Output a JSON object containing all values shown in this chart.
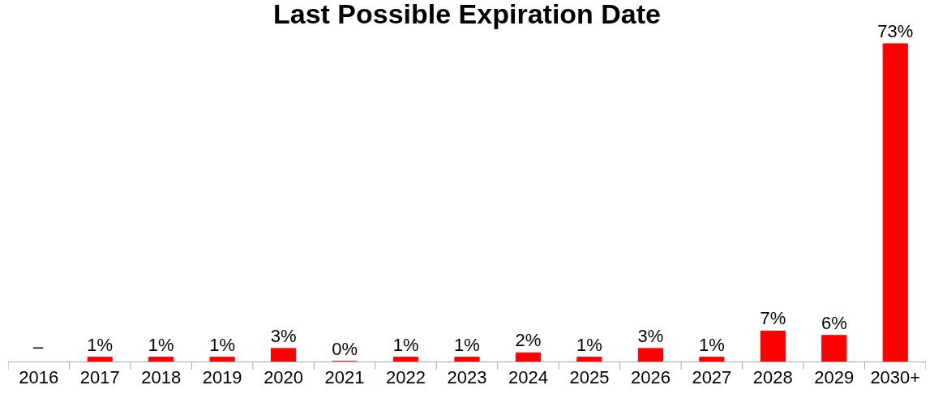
{
  "chart_data": {
    "type": "bar",
    "title": "Last Possible Expiration Date",
    "categories": [
      "2016",
      "2017",
      "2018",
      "2019",
      "2020",
      "2021",
      "2022",
      "2023",
      "2024",
      "2025",
      "2026",
      "2027",
      "2028",
      "2029",
      "2030+"
    ],
    "values": [
      null,
      1,
      1,
      1,
      3,
      0,
      1,
      1,
      2,
      1,
      3,
      1,
      7,
      6,
      73
    ],
    "value_labels": [
      "–",
      "1%",
      "1%",
      "1%",
      "3%",
      "0%",
      "1%",
      "1%",
      "2%",
      "1%",
      "3%",
      "1%",
      "7%",
      "6%",
      "73%"
    ],
    "color": "#ff0000"
  }
}
